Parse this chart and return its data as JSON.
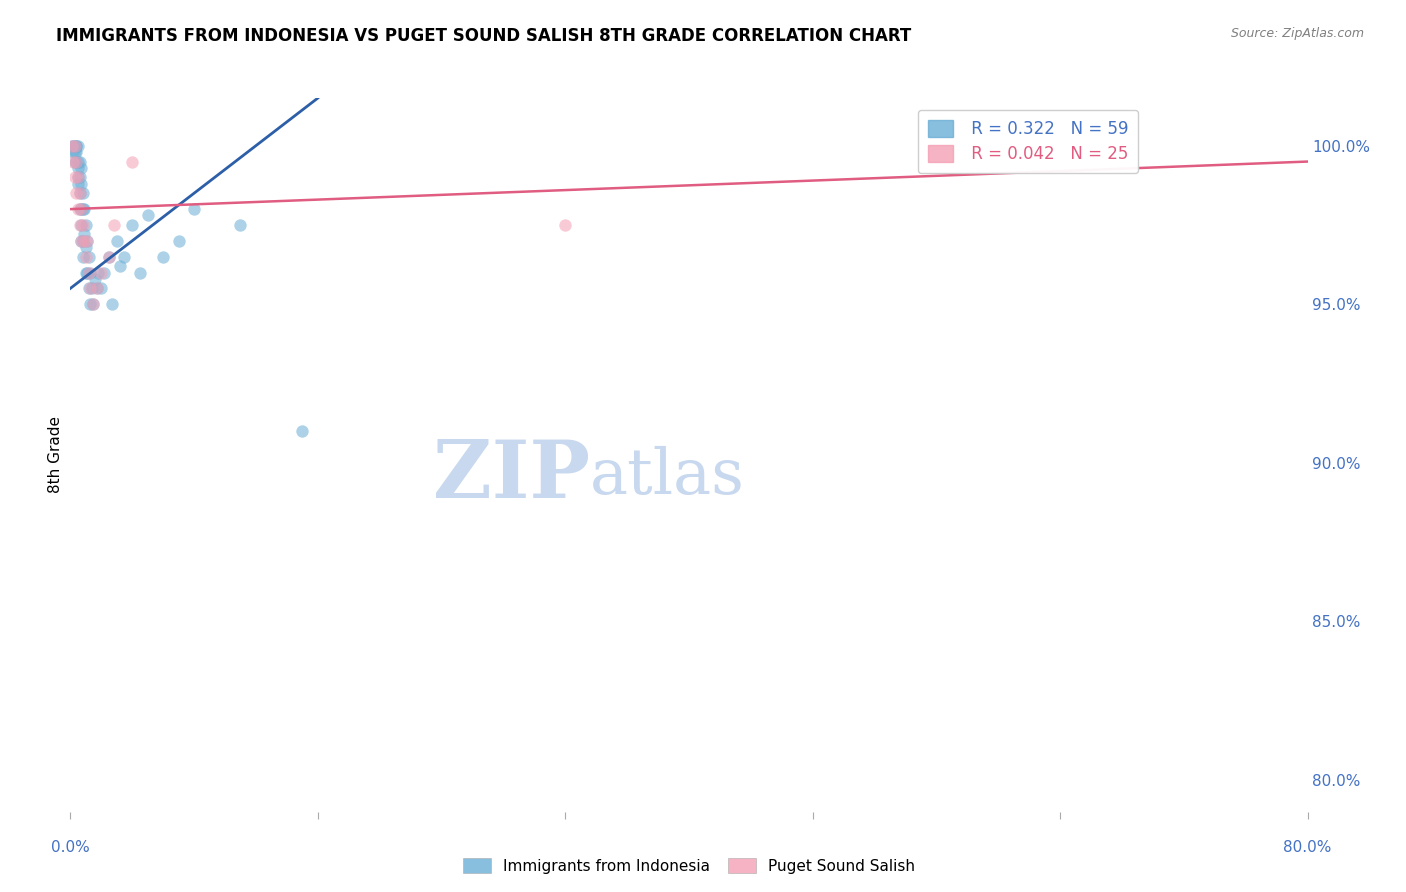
{
  "title": "IMMIGRANTS FROM INDONESIA VS PUGET SOUND SALISH 8TH GRADE CORRELATION CHART",
  "source": "Source: ZipAtlas.com",
  "ylabel": "8th Grade",
  "yticks": [
    80.0,
    85.0,
    90.0,
    95.0,
    100.0
  ],
  "xlim": [
    0.0,
    0.8
  ],
  "ylim": [
    79.0,
    101.5
  ],
  "legend_blue_R": "0.322",
  "legend_blue_N": "59",
  "legend_pink_R": "0.042",
  "legend_pink_N": "25",
  "blue_scatter_x": [
    0.001,
    0.002,
    0.002,
    0.003,
    0.003,
    0.003,
    0.004,
    0.004,
    0.004,
    0.004,
    0.005,
    0.005,
    0.005,
    0.005,
    0.005,
    0.006,
    0.006,
    0.006,
    0.006,
    0.007,
    0.007,
    0.007,
    0.007,
    0.007,
    0.008,
    0.008,
    0.008,
    0.008,
    0.009,
    0.009,
    0.01,
    0.01,
    0.01,
    0.011,
    0.011,
    0.012,
    0.012,
    0.013,
    0.013,
    0.014,
    0.015,
    0.016,
    0.017,
    0.018,
    0.02,
    0.022,
    0.025,
    0.027,
    0.03,
    0.032,
    0.035,
    0.04,
    0.045,
    0.05,
    0.06,
    0.07,
    0.08,
    0.11,
    0.15
  ],
  "blue_scatter_y": [
    100.0,
    100.0,
    99.8,
    100.0,
    99.5,
    99.8,
    100.0,
    100.0,
    99.8,
    99.5,
    100.0,
    99.5,
    99.3,
    99.0,
    98.8,
    99.5,
    99.0,
    98.5,
    98.0,
    99.3,
    98.8,
    98.0,
    97.5,
    97.0,
    98.5,
    98.0,
    97.0,
    96.5,
    98.0,
    97.2,
    97.5,
    96.8,
    96.0,
    97.0,
    96.0,
    96.5,
    95.5,
    96.0,
    95.0,
    95.5,
    95.0,
    95.8,
    95.5,
    96.0,
    95.5,
    96.0,
    96.5,
    95.0,
    97.0,
    96.2,
    96.5,
    97.5,
    96.0,
    97.8,
    96.5,
    97.0,
    98.0,
    97.5,
    91.0
  ],
  "pink_scatter_x": [
    0.001,
    0.002,
    0.003,
    0.003,
    0.004,
    0.004,
    0.005,
    0.005,
    0.006,
    0.006,
    0.007,
    0.007,
    0.008,
    0.009,
    0.01,
    0.011,
    0.012,
    0.013,
    0.015,
    0.017,
    0.02,
    0.025,
    0.028,
    0.04,
    0.32
  ],
  "pink_scatter_y": [
    100.0,
    99.5,
    100.0,
    99.0,
    99.5,
    98.5,
    99.0,
    98.0,
    98.5,
    97.5,
    98.0,
    97.0,
    97.5,
    97.0,
    96.5,
    97.0,
    96.0,
    95.5,
    95.0,
    95.5,
    96.0,
    96.5,
    97.5,
    99.5,
    97.5
  ],
  "blue_line_x": [
    0.0,
    0.16
  ],
  "blue_line_y": [
    95.5,
    101.5
  ],
  "pink_line_x": [
    0.0,
    0.8
  ],
  "pink_line_y": [
    98.0,
    99.5
  ],
  "blue_color": "#6baed6",
  "blue_line_color": "#2c5fa8",
  "pink_color": "#f4a0b5",
  "pink_line_color": "#e05c80",
  "scatter_alpha": 0.55,
  "scatter_size": 80,
  "watermark_zip": "ZIP",
  "watermark_atlas": "atlas",
  "watermark_color_zip": "#c8d8ee",
  "watermark_color_atlas": "#c8d8ee",
  "background_color": "#ffffff",
  "grid_color": "#cccccc",
  "axis_label_color": "#4472c4",
  "title_fontsize": 12,
  "axis_fontsize": 11
}
